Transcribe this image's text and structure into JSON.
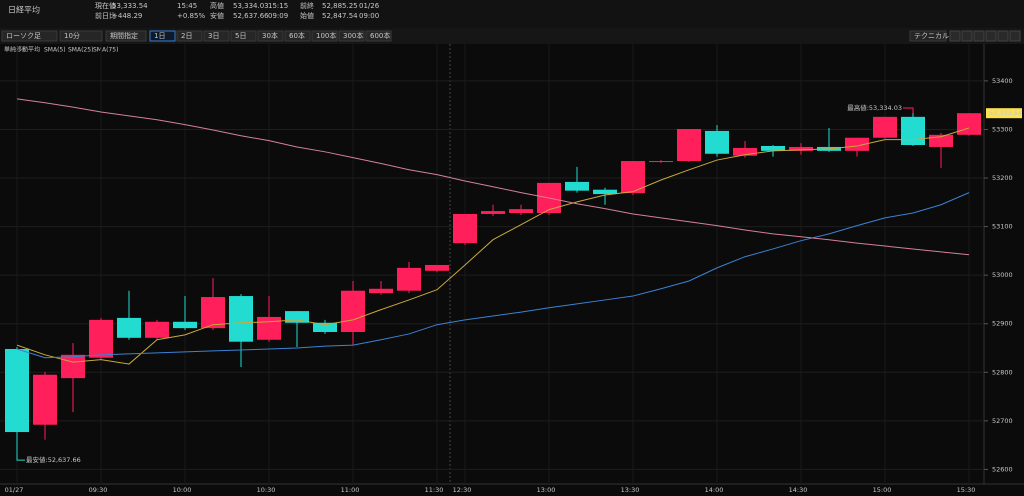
{
  "header": {
    "title": "日経平均",
    "fields": [
      {
        "label": "現在値",
        "value": "53,333.54",
        "extra": "15:45"
      },
      {
        "label": "前日比",
        "value": "+448.29",
        "extra": "+0.85%"
      },
      {
        "label": "高値",
        "value": "53,334.03",
        "extra": "15:15"
      },
      {
        "label": "安値",
        "value": "52,637.66",
        "extra": "09:09"
      },
      {
        "label": "前終",
        "value": "52,885.25",
        "extra": "01/26"
      },
      {
        "label": "始値",
        "value": "52,847.54",
        "extra": "09:00"
      }
    ]
  },
  "toolbar": {
    "chart_type": "ローソク足",
    "interval": "10分",
    "period": "期間指定",
    "ranges": [
      "1日",
      "2日",
      "3日",
      "5日",
      "30本",
      "60本",
      "100本",
      "300本",
      "600本"
    ],
    "technical": "テクニカル"
  },
  "chart_data": {
    "type": "candlestick",
    "indicator_label": "単純移動平均",
    "up_color": "#ff1f5a",
    "down_color": "#22dcd2",
    "categories": [
      "01/27",
      null,
      null,
      "09:30",
      null,
      null,
      "10:00",
      null,
      null,
      "10:30",
      null,
      null,
      "11:00",
      null,
      null,
      "11:30",
      "12:30",
      null,
      null,
      "13:00",
      null,
      null,
      "13:30",
      null,
      null,
      "14:00",
      null,
      null,
      "14:30",
      null,
      null,
      "15:00",
      null,
      null,
      "15:30"
    ],
    "open": [
      52848,
      52692,
      52788,
      52830,
      52912,
      52871,
      52904,
      52891,
      52957,
      52867,
      52926,
      52902,
      52883,
      52963,
      52968,
      53009,
      53066,
      53126,
      53128,
      53128,
      53192,
      53176,
      53169,
      53233,
      53235,
      53297,
      53246,
      53266,
      53256,
      53264,
      53256,
      53283,
      53326,
      53264,
      53289
    ],
    "high": [
      52852,
      52801,
      52860,
      52912,
      52968,
      52908,
      52957,
      52994,
      52961,
      52957,
      52926,
      52908,
      52988,
      52988,
      53027,
      53021,
      53126,
      53145,
      53145,
      53190,
      53223,
      53180,
      53235,
      53237,
      53301,
      53309,
      53276,
      53268,
      53272,
      53303,
      53283,
      53326,
      53334.03,
      53293,
      53333.54
    ],
    "low": [
      52637.66,
      52661,
      52718,
      52826,
      52867,
      52867,
      52887,
      52887,
      52811,
      52863,
      52852,
      52879,
      52856,
      52960,
      52963,
      53006,
      53062,
      53122,
      53124,
      53124,
      53170,
      53145,
      53165,
      53231,
      53233,
      53244,
      53242,
      53244,
      53248,
      53254,
      53244,
      53281,
      53266,
      53221,
      53287
    ],
    "close": [
      52677,
      52795,
      52836,
      52908,
      52871,
      52904,
      52891,
      52955,
      52863,
      52914,
      52902,
      52883,
      52968,
      52972,
      53015,
      53021,
      53126,
      53132,
      53136,
      53190,
      53174,
      53167,
      53235,
      53235,
      53301,
      53250,
      53262,
      53256,
      53264,
      53256,
      53283,
      53326,
      53268,
      53289,
      53333.54
    ],
    "series": [
      {
        "name": "SMA(5)",
        "color": "#c9a93a",
        "values": [
          52856,
          52836,
          52821,
          52826,
          52817,
          52867,
          52877,
          52898,
          52902,
          52904,
          52908,
          52898,
          52908,
          52929,
          52949,
          52970,
          53021,
          53073,
          53104,
          53135,
          53151,
          53165,
          53172,
          53196,
          53217,
          53237,
          53248,
          53256,
          53258,
          53260,
          53266,
          53279,
          53279,
          53285,
          53303
        ]
      },
      {
        "name": "SMA(25)",
        "color": "#3c82d4",
        "values": [
          52848,
          52830,
          52832,
          52836,
          52838,
          52840,
          52842,
          52844,
          52846,
          52848,
          52850,
          52854,
          52856,
          52867,
          52879,
          52898,
          52908,
          52916,
          52924,
          52933,
          52941,
          52949,
          52957,
          52972,
          52988,
          53015,
          53038,
          53054,
          53071,
          53085,
          53102,
          53118,
          53128,
          53145,
          53170
        ]
      },
      {
        "name": "SMA(75)",
        "color": "#d4809a",
        "values": [
          53363,
          53355,
          53346,
          53336,
          53328,
          53320,
          53310,
          53299,
          53287,
          53277,
          53264,
          53254,
          53242,
          53230,
          53217,
          53207,
          53194,
          53182,
          53170,
          53159,
          53147,
          53137,
          53126,
          53118,
          53110,
          53102,
          53093,
          53085,
          53079,
          53073,
          53066,
          53060,
          53054,
          53048,
          53042
        ]
      }
    ],
    "ylim": [
      52570,
      53476
    ],
    "yticks": [
      52600,
      52700,
      52800,
      52900,
      53000,
      53100,
      53200,
      53300,
      53400
    ],
    "grid": true,
    "annotations": [
      "最安値:52,637.66",
      "最高値:53,334.03"
    ],
    "last_price_label": "53,333.54"
  }
}
